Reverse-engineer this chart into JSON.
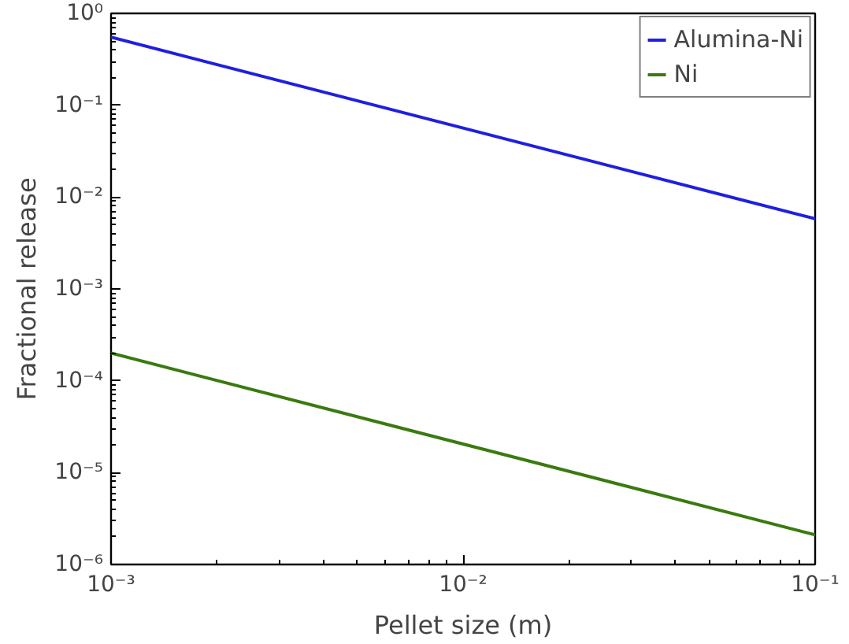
{
  "chart_data": {
    "type": "line",
    "xlabel": "Pellet size (m)",
    "ylabel": "Fractional release",
    "log": "xy",
    "grid": false,
    "legend": "top right",
    "line_style": "solid",
    "marker": "none",
    "xlim": [
      0.001,
      0.1
    ],
    "ylim": [
      1e-06,
      1
    ],
    "xticks": [
      {
        "value": 0.001,
        "label": "10⁻³"
      },
      {
        "value": 0.01,
        "label": "10⁻²"
      },
      {
        "value": 0.1,
        "label": "10⁻¹"
      }
    ],
    "yticks": [
      {
        "value": 1e-06,
        "label": "10⁻⁶"
      },
      {
        "value": 1e-05,
        "label": "10⁻⁵"
      },
      {
        "value": 0.0001,
        "label": "10⁻⁴"
      },
      {
        "value": 0.001,
        "label": "10⁻³"
      },
      {
        "value": 0.01,
        "label": "10⁻²"
      },
      {
        "value": 0.1,
        "label": "10⁻¹"
      },
      {
        "value": 1,
        "label": "10⁰"
      }
    ],
    "x": [
      0.001,
      0.1
    ],
    "series": [
      {
        "name": "Alumina-Ni",
        "color": "#1f1fe0",
        "values": [
          0.55,
          0.0058
        ]
      },
      {
        "name": "Ni",
        "color": "#3a7a10",
        "values": [
          0.0002,
          2.1e-06
        ]
      }
    ]
  }
}
